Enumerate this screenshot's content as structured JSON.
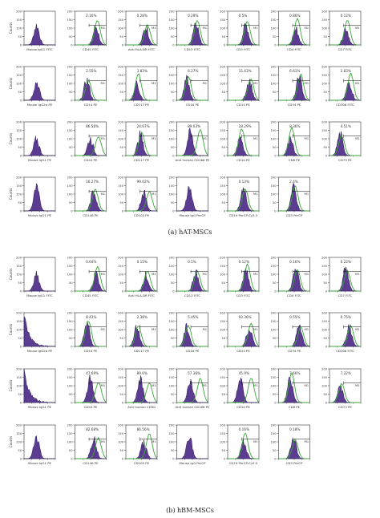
{
  "figure": {
    "panels": [
      {
        "caption": "(a)  hAT-MSCs",
        "rows": [
          [
            {
              "xlabel": "Mouse IgG1 FITC",
              "pct": "",
              "marker": "",
              "isotype": true,
              "ylabel": "Counts"
            },
            {
              "xlabel": "CD45 FITC",
              "pct": "2.16%",
              "marker": "M1"
            },
            {
              "xlabel": "Anti HLA-DR FITC",
              "pct": "0.28%",
              "marker": "M1"
            },
            {
              "xlabel": "CD13 FITC",
              "pct": "0.29%",
              "marker": "M1"
            },
            {
              "xlabel": "CD3 FITC",
              "pct": "0.5%",
              "marker": "M1"
            },
            {
              "xlabel": "CD4 FITC",
              "pct": "0.86%",
              "marker": "M1"
            },
            {
              "xlabel": "CD7 FITC",
              "pct": "0.12%",
              "marker": "M1"
            }
          ],
          [
            {
              "xlabel": "Mouse IgG2a PE",
              "pct": "",
              "marker": "",
              "isotype": true,
              "ylabel": "Counts"
            },
            {
              "xlabel": "CD14 PE",
              "pct": "2.55%",
              "marker": "M1"
            },
            {
              "xlabel": "CD117 PE",
              "pct": "3.83%",
              "marker": "M1"
            },
            {
              "xlabel": "CD16 PE",
              "pct": "6.27%",
              "marker": "M1"
            },
            {
              "xlabel": "CD15 PE",
              "pct": "15.43%",
              "marker": "M1"
            },
            {
              "xlabel": "CD34 PE",
              "pct": "6.61%",
              "marker": "M1"
            },
            {
              "xlabel": "CD106 FITC",
              "pct": "2.83%",
              "marker": "M1"
            }
          ],
          [
            {
              "xlabel": "Mouse IgG1 PE",
              "pct": "",
              "marker": "",
              "isotype": true,
              "ylabel": "Counts"
            },
            {
              "xlabel": "CD44 PE",
              "pct": "86.56%",
              "marker": "M1"
            },
            {
              "xlabel": "CD117 PE",
              "pct": "24.67%",
              "marker": "M1"
            },
            {
              "xlabel": "Anti human CD166 PE",
              "pct": "89.03%",
              "marker": "M1"
            },
            {
              "xlabel": "CD10 PE",
              "pct": "18.29%",
              "marker": "M1"
            },
            {
              "xlabel": "CD8 PE",
              "pct": "8.36%",
              "marker": "M1"
            },
            {
              "xlabel": "CD73 PE",
              "pct": "4.51%",
              "marker": "M1"
            }
          ],
          [
            {
              "xlabel": "Mouse IgG1 PE",
              "pct": "",
              "marker": "",
              "isotype": true,
              "ylabel": "Counts"
            },
            {
              "xlabel": "CD146 PE",
              "pct": "16.27%",
              "marker": "M1"
            },
            {
              "xlabel": "CD105 PE",
              "pct": "99.02%",
              "marker": "M1"
            },
            {
              "xlabel": "Mouse IgG PerCP",
              "pct": "",
              "marker": "",
              "isotype": true
            },
            {
              "xlabel": "CD19 PerCP-Cy5.5",
              "pct": "0.13%",
              "marker": "M1"
            },
            {
              "xlabel": "CD3 PerCP",
              "pct": "2.4%",
              "marker": "M1"
            }
          ]
        ]
      },
      {
        "caption": "(b)  hBM-MSCs",
        "rows": [
          [
            {
              "xlabel": "Mouse IgG1 FITC",
              "pct": "",
              "marker": "",
              "isotype": true,
              "ylabel": "Counts"
            },
            {
              "xlabel": "CD45 FITC",
              "pct": "0.04%",
              "marker": "M1"
            },
            {
              "xlabel": "Anti HLA-DR FITC",
              "pct": "0.15%",
              "marker": "M1"
            },
            {
              "xlabel": "CD13 FITC",
              "pct": "0.5%",
              "marker": "M1"
            },
            {
              "xlabel": "CD3 FITC",
              "pct": "0.12%",
              "marker": "M1"
            },
            {
              "xlabel": "CD4 FITC",
              "pct": "0.16%",
              "marker": "M1"
            },
            {
              "xlabel": "CD7 FITC",
              "pct": "0.22%",
              "marker": "M1"
            }
          ],
          [
            {
              "xlabel": "Mouse IgG2a PE",
              "pct": "",
              "marker": "",
              "isotype": true,
              "ylabel": "Counts"
            },
            {
              "xlabel": "CD14 PE",
              "pct": "8.43%",
              "marker": "M1"
            },
            {
              "xlabel": "CD117 PE",
              "pct": "2.38%",
              "marker": "M1"
            },
            {
              "xlabel": "CD16 PE",
              "pct": "5.45%",
              "marker": "M1"
            },
            {
              "xlabel": "CD15 PE",
              "pct": "93.36%",
              "marker": "M1"
            },
            {
              "xlabel": "CD34 PE",
              "pct": "0.55%",
              "marker": "M1"
            },
            {
              "xlabel": "CD106 FITC",
              "pct": "0.75%",
              "marker": "M1"
            }
          ],
          [
            {
              "xlabel": "Mouse IgG1 PE",
              "pct": "",
              "marker": "",
              "isotype": true,
              "ylabel": "Counts"
            },
            {
              "xlabel": "CD44 PE",
              "pct": "47.69%",
              "marker": "M1"
            },
            {
              "xlabel": "Anti human CD90",
              "pct": "89.6%",
              "marker": "M1"
            },
            {
              "xlabel": "Anti human CD166 PE",
              "pct": "57.36%",
              "marker": "M1"
            },
            {
              "xlabel": "CD10 PE",
              "pct": "45.9%",
              "marker": "M1"
            },
            {
              "xlabel": "CD8 PE",
              "pct": "7.66%",
              "marker": "M1"
            },
            {
              "xlabel": "CD73 PE",
              "pct": "7.22%",
              "marker": "M1"
            }
          ],
          [
            {
              "xlabel": "Mouse IgG1 PE",
              "pct": "",
              "marker": "",
              "isotype": true,
              "ylabel": "Counts"
            },
            {
              "xlabel": "CD146 PE",
              "pct": "82.68%",
              "marker": "M1"
            },
            {
              "xlabel": "CD105 PE",
              "pct": "86.56%",
              "marker": "M1"
            },
            {
              "xlabel": "Mouse IgG PerCP",
              "pct": "",
              "marker": "",
              "isotype": true
            },
            {
              "xlabel": "CD19 PerCP-Cy5.5",
              "pct": "0.16%",
              "marker": "M1"
            },
            {
              "xlabel": "CD3 PerCP",
              "pct": "0.18%",
              "marker": "M1"
            }
          ]
        ]
      }
    ],
    "yticks": [
      "0",
      "50",
      "100",
      "150",
      "200"
    ],
    "colors": {
      "fill": "#5b3c91",
      "fill_edge": "#2d1a55",
      "overlay": "#3aa63a",
      "axis": "#333333",
      "text": "#333333"
    }
  }
}
